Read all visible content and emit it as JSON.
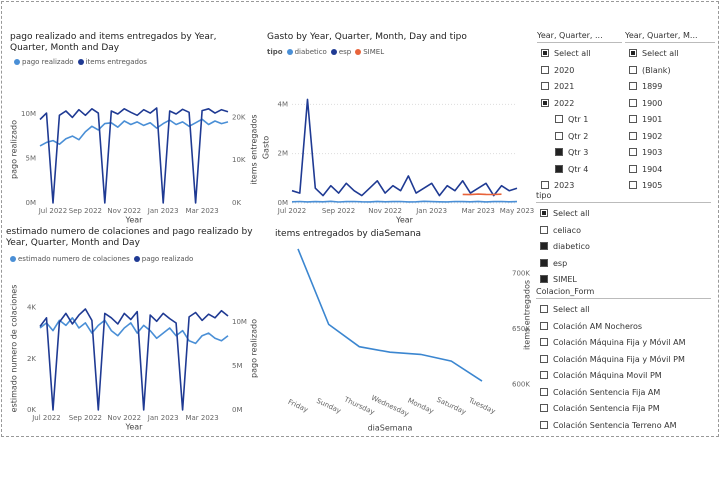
{
  "charts": [
    {
      "type": "line",
      "title": "pago realizado and items entregados by Year, Quarter, Month and Day",
      "x_label": "Year",
      "y_label": "pago realizado",
      "y2_label": "items entregados",
      "categories": [
        null,
        null,
        "Jul 2022",
        null,
        null,
        null,
        null,
        "Sep 2022",
        null,
        null,
        null,
        null,
        null,
        "Nov 2022",
        null,
        null,
        null,
        null,
        null,
        "Jan 2023",
        null,
        null,
        null,
        null,
        null,
        "Mar 2023",
        null,
        null,
        null,
        null
      ],
      "ylim": [
        0,
        12000000
      ],
      "yticks": [
        {
          "value": 0,
          "label": "0M"
        },
        {
          "value": 5000000,
          "label": "5M"
        },
        {
          "value": 10000000,
          "label": "10M"
        }
      ],
      "y2lim": [
        0,
        25000
      ],
      "y2ticks": [
        {
          "value": 0,
          "label": "0K"
        },
        {
          "value": 10000,
          "label": "10K"
        },
        {
          "value": 20000,
          "label": "20K"
        }
      ],
      "series": [
        {
          "name": "pago realizado",
          "color": "#4a8fd6",
          "values": [
            6400000,
            6800000,
            7000000,
            6600000,
            7200000,
            7500000,
            7100000,
            8000000,
            8600000,
            8200000,
            8900000,
            9000000,
            8500000,
            9200000,
            8800000,
            9100000,
            8700000,
            9000000,
            8400000,
            8900000,
            9300000,
            8800000,
            9100000,
            8600000,
            9000000,
            9400000,
            8800000,
            9200000,
            8900000,
            9100000
          ]
        },
        {
          "name": "items entregados",
          "color": "#1f3a93",
          "axis": "y2",
          "values": [
            19500,
            21000,
            0,
            20500,
            21500,
            20000,
            21800,
            20500,
            22000,
            21000,
            0,
            21500,
            20800,
            22000,
            21200,
            20500,
            21800,
            21000,
            22200,
            0,
            21500,
            20800,
            21900,
            21200,
            0,
            21600,
            22000,
            21000,
            21800,
            21300
          ]
        }
      ]
    },
    {
      "type": "line",
      "title": "Gasto by Year, Quarter, Month, Day and tipo",
      "legend_title": "tipo",
      "x_label": "Year",
      "y_label": "Gasto",
      "grid": true,
      "categories": [
        "Jul 2022",
        null,
        null,
        null,
        null,
        null,
        "Sep 2022",
        null,
        null,
        null,
        null,
        null,
        "Nov 2022",
        null,
        null,
        null,
        null,
        null,
        "Jan 2023",
        null,
        null,
        null,
        null,
        null,
        "Mar 2023",
        null,
        null,
        null,
        null,
        "May 2023"
      ],
      "ylim": [
        0,
        4500000
      ],
      "yticks": [
        {
          "value": 0,
          "label": "0M"
        },
        {
          "value": 2000000,
          "label": "2M"
        },
        {
          "value": 4000000,
          "label": "4M"
        }
      ],
      "series": [
        {
          "name": "diabetico",
          "color": "#4a8fd6",
          "values": [
            50000,
            60000,
            45000,
            55000,
            50000,
            70000,
            40000,
            55000,
            60000,
            50000,
            45000,
            65000,
            50000,
            55000,
            60000,
            45000,
            50000,
            70000,
            55000,
            50000,
            45000,
            60000,
            55000,
            50000,
            65000,
            45000,
            55000,
            60000,
            50000,
            55000
          ]
        },
        {
          "name": "esp",
          "color": "#1f3a93",
          "values": [
            500000,
            400000,
            4200000,
            600000,
            300000,
            700000,
            400000,
            800000,
            500000,
            300000,
            600000,
            900000,
            400000,
            700000,
            500000,
            1100000,
            400000,
            600000,
            800000,
            300000,
            700000,
            500000,
            900000,
            400000,
            600000,
            800000,
            300000,
            700000,
            500000,
            600000
          ]
        },
        {
          "name": "SIMEL",
          "color": "#e8633a",
          "values": [
            null,
            null,
            null,
            null,
            null,
            null,
            null,
            null,
            null,
            null,
            null,
            null,
            null,
            null,
            null,
            null,
            null,
            null,
            null,
            null,
            null,
            null,
            350000,
            340000,
            360000,
            350000,
            345000,
            355000,
            null,
            null
          ]
        }
      ]
    },
    {
      "type": "line",
      "title": "estimado numero de colaciones and pago realizado by Year, Quarter, Month and Day",
      "x_label": "Year",
      "y_label": "estimado numero de colaciones",
      "y2_label": "pago realizado",
      "categories": [
        null,
        "Jul 2022",
        null,
        null,
        null,
        null,
        null,
        "Sep 2022",
        null,
        null,
        null,
        null,
        null,
        "Nov 2022",
        null,
        null,
        null,
        null,
        null,
        "Jan 2023",
        null,
        null,
        null,
        null,
        null,
        "Mar 2023",
        null,
        null,
        null,
        null
      ],
      "ylim": [
        0,
        4800
      ],
      "yticks": [
        {
          "value": 0,
          "label": "0K"
        },
        {
          "value": 2000,
          "label": "2K"
        },
        {
          "value": 4000,
          "label": "4K"
        }
      ],
      "y2lim": [
        0,
        14000000
      ],
      "y2ticks": [
        {
          "value": 0,
          "label": "0M"
        },
        {
          "value": 5000000,
          "label": "5M"
        },
        {
          "value": 10000000,
          "label": "10M"
        }
      ],
      "series": [
        {
          "name": "estimado numero de colaciones",
          "color": "#4a8fd6",
          "values": [
            3200,
            3400,
            3100,
            3500,
            3300,
            3600,
            3200,
            3400,
            3000,
            3300,
            3500,
            3100,
            2900,
            3200,
            3400,
            3000,
            3300,
            3100,
            2800,
            3000,
            3200,
            2900,
            3100,
            2700,
            2600,
            2900,
            3000,
            2800,
            2700,
            2900
          ]
        },
        {
          "name": "pago realizado",
          "color": "#1f3a93",
          "axis": "y2",
          "values": [
            9500000,
            10500000,
            0,
            10000000,
            11000000,
            9800000,
            10800000,
            11500000,
            10200000,
            0,
            11000000,
            10500000,
            9800000,
            11000000,
            10300000,
            11200000,
            0,
            10800000,
            10100000,
            11000000,
            10400000,
            9900000,
            0,
            10600000,
            11100000,
            10200000,
            10900000,
            10500000,
            11300000,
            10700000
          ]
        }
      ]
    },
    {
      "type": "category_line",
      "title": "items entregados by diaSemana",
      "x_label": "diaSemana",
      "y_label": "items entregados",
      "color": "#3b86d0",
      "categories": [
        "Friday",
        "Sunday",
        "Thursday",
        "Wednesday",
        "Monday",
        "Saturday",
        "Tuesday"
      ],
      "values": [
        722000,
        654000,
        634000,
        629000,
        627000,
        621000,
        603000
      ],
      "ylim": [
        595000,
        730000
      ],
      "yticks": [
        {
          "value": 600000,
          "label": "600K"
        },
        {
          "value": 650000,
          "label": "650K"
        },
        {
          "value": 700000,
          "label": "700K"
        }
      ]
    }
  ],
  "slicers": [
    {
      "header": "Year, Quarter, ...",
      "items": [
        {
          "label": "Select all",
          "state": "partial",
          "level": 0
        },
        {
          "label": "2020",
          "state": "unchecked",
          "level": 0
        },
        {
          "label": "2021",
          "state": "unchecked",
          "level": 0
        },
        {
          "label": "2022",
          "state": "partial",
          "level": 0
        },
        {
          "label": "Qtr 1",
          "state": "unchecked",
          "level": 1
        },
        {
          "label": "Qtr 2",
          "state": "unchecked",
          "level": 1
        },
        {
          "label": "Qtr 3",
          "state": "checked",
          "level": 1
        },
        {
          "label": "Qtr 4",
          "state": "checked",
          "level": 1
        },
        {
          "label": "2023",
          "state": "unchecked",
          "level": 0
        }
      ]
    },
    {
      "header": "Year, Quarter, M...",
      "items": [
        {
          "label": "Select all",
          "state": "partial",
          "level": 0
        },
        {
          "label": "(Blank)",
          "state": "unchecked",
          "level": 0
        },
        {
          "label": "1899",
          "state": "unchecked",
          "level": 0
        },
        {
          "label": "1900",
          "state": "unchecked",
          "level": 0
        },
        {
          "label": "1901",
          "state": "unchecked",
          "level": 0
        },
        {
          "label": "1902",
          "state": "unchecked",
          "level": 0
        },
        {
          "label": "1903",
          "state": "unchecked",
          "level": 0
        },
        {
          "label": "1904",
          "state": "unchecked",
          "level": 0
        },
        {
          "label": "1905",
          "state": "unchecked",
          "level": 0
        }
      ]
    },
    {
      "header": "tipo",
      "items": [
        {
          "label": "Select all",
          "state": "partial",
          "level": 0
        },
        {
          "label": "celiaco",
          "state": "unchecked",
          "level": 0
        },
        {
          "label": "diabetico",
          "state": "checked",
          "level": 0
        },
        {
          "label": "esp",
          "state": "checked",
          "level": 0
        },
        {
          "label": "SIMEL",
          "state": "checked",
          "level": 0
        }
      ]
    },
    {
      "header": "Colacion_Form",
      "items": [
        {
          "label": "Select all",
          "state": "unchecked",
          "level": 0
        },
        {
          "label": "Colación AM Nocheros",
          "state": "unchecked",
          "level": 0
        },
        {
          "label": "Colación Máquina Fija y Móvil AM",
          "state": "unchecked",
          "level": 0
        },
        {
          "label": "Colación Máquina Fija y Móvil PM",
          "state": "unchecked",
          "level": 0
        },
        {
          "label": "Colación Máquina Movil PM",
          "state": "unchecked",
          "level": 0
        },
        {
          "label": "Colación Sentencia Fija AM",
          "state": "unchecked",
          "level": 0
        },
        {
          "label": "Colación Sentencia Fija PM",
          "state": "unchecked",
          "level": 0
        },
        {
          "label": "Colación Sentencia Terreno AM",
          "state": "unchecked",
          "level": 0
        }
      ]
    }
  ]
}
